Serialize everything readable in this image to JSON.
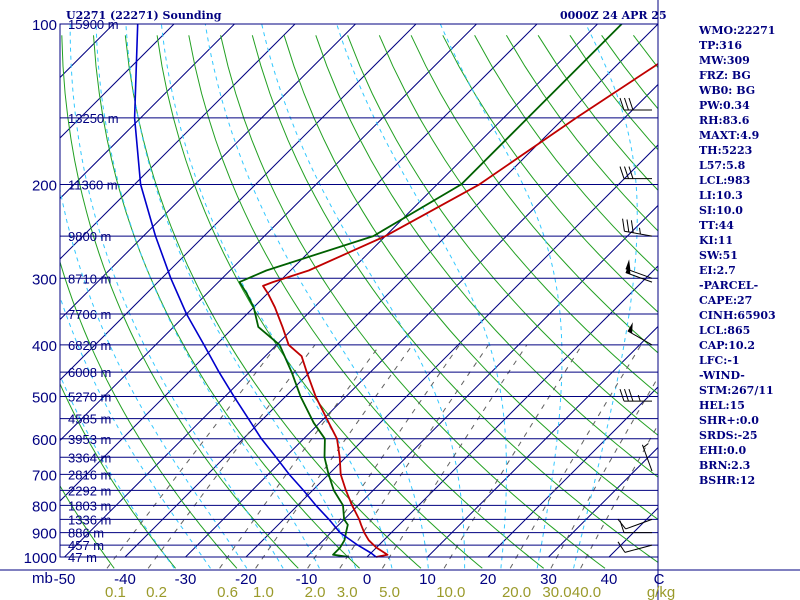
{
  "header": {
    "station": "U2271 (22271) Sounding",
    "valid_time": "0000Z 24 APR 25"
  },
  "indices": [
    "WMO:22271",
    "TP:316",
    "MW:309",
    "FRZ: BG",
    "WB0: BG",
    "PW:0.34",
    "RH:83.6",
    "MAXT:4.9",
    "TH:5223",
    "L57:5.8",
    "LCL:983",
    "LI:10.3",
    "SI:10.0",
    "TT:44",
    "KI:11",
    "SW:51",
    "EI:2.7",
    "-PARCEL-",
    "CAPE:27",
    "CINH:65903",
    "LCL:865",
    "CAP:10.2",
    "LFC:-1",
    "-WIND-",
    "STM:267/11",
    "HEL:15",
    "SHR+:0.0",
    "SRDS:-25",
    "EHI:0.0",
    "BRN:2.3",
    "BSHR:12"
  ],
  "colors": {
    "temperature": "#c00000",
    "dewpoint": "#006000",
    "parcel": "#0000cc",
    "isobar": "#000080",
    "isotherm": "#000080",
    "dry_adiabat": "#22a022",
    "moist_adiabat": "#33c8ff",
    "mixing_ratio": "#606060",
    "text": "#000080",
    "axis_text": "#9a9a2a"
  },
  "chart_data": {
    "type": "line",
    "subtype": "skew-T log-P sounding",
    "title": "U2271 (22271) Sounding",
    "ylabel": "mb",
    "xlabel": "C",
    "xlabel_secondary": "g/kg",
    "ylim": [
      1000,
      100
    ],
    "xlim": [
      -50,
      50
    ],
    "pressure_ticks": [
      100,
      200,
      300,
      400,
      500,
      600,
      700,
      800,
      900,
      1000
    ],
    "temperature_ticks": [
      -50,
      -40,
      -30,
      -20,
      -10,
      0,
      10,
      20,
      30,
      40
    ],
    "temperature_tick_labels": [
      "-50",
      "-40",
      "-30",
      "-20",
      "-10",
      "0",
      "10",
      "20",
      "30",
      "40",
      "C"
    ],
    "mixing_ratio_ticks": [
      0.1,
      0.2,
      0.6,
      1.0,
      2.0,
      3.0,
      5.0,
      10.0,
      20.0,
      30.0,
      40.0
    ],
    "mixing_ratio_tick_labels": [
      "0.1",
      "0.2",
      "0.6",
      "1.0",
      "2.0",
      "3.0",
      "5.0",
      "10.0",
      "20.0",
      "30.0",
      "40.0",
      "g/kg"
    ],
    "height_labels": [
      {
        "p": 100,
        "label": "15900 m"
      },
      {
        "p": 150,
        "label": "13250 m"
      },
      {
        "p": 200,
        "label": "11360 m"
      },
      {
        "p": 250,
        "label": "9800 m"
      },
      {
        "p": 300,
        "label": "8710 m"
      },
      {
        "p": 350,
        "label": "7706 m"
      },
      {
        "p": 400,
        "label": "6820 m"
      },
      {
        "p": 450,
        "label": "6008 m"
      },
      {
        "p": 500,
        "label": "5270 m"
      },
      {
        "p": 550,
        "label": "4585 m"
      },
      {
        "p": 600,
        "label": "3953 m"
      },
      {
        "p": 650,
        "label": "3364 m"
      },
      {
        "p": 700,
        "label": "2816 m"
      },
      {
        "p": 750,
        "label": "2292 m"
      },
      {
        "p": 800,
        "label": "1803 m"
      },
      {
        "p": 850,
        "label": "1336 m"
      },
      {
        "p": 900,
        "label": "886 m"
      },
      {
        "p": 950,
        "label": "457 m"
      },
      {
        "p": 1000,
        "label": "47 m"
      }
    ],
    "series": [
      {
        "id": "temperature",
        "points": [
          {
            "p": 1000,
            "t": 1.5
          },
          {
            "p": 990,
            "t": 3.0
          },
          {
            "p": 960,
            "t": 0.0
          },
          {
            "p": 930,
            "t": -2.5
          },
          {
            "p": 900,
            "t": -4.5
          },
          {
            "p": 870,
            "t": -6.3
          },
          {
            "p": 850,
            "t": -7.5
          },
          {
            "p": 800,
            "t": -11.0
          },
          {
            "p": 750,
            "t": -14.5
          },
          {
            "p": 700,
            "t": -18.0
          },
          {
            "p": 650,
            "t": -21.0
          },
          {
            "p": 600,
            "t": -24.5
          },
          {
            "p": 560,
            "t": -28.5
          },
          {
            "p": 500,
            "t": -35.0
          },
          {
            "p": 450,
            "t": -40.5
          },
          {
            "p": 420,
            "t": -44.0
          },
          {
            "p": 400,
            "t": -48.0
          },
          {
            "p": 370,
            "t": -52.0
          },
          {
            "p": 340,
            "t": -56.5
          },
          {
            "p": 320,
            "t": -60.0
          },
          {
            "p": 310,
            "t": -62.0
          },
          {
            "p": 305,
            "t": -61.0
          },
          {
            "p": 290,
            "t": -57.0
          },
          {
            "p": 250,
            "t": -50.0
          },
          {
            "p": 200,
            "t": -43.0
          },
          {
            "p": 150,
            "t": -38.0
          },
          {
            "p": 100,
            "t": -30.0
          }
        ]
      },
      {
        "id": "dewpoint",
        "points": [
          {
            "p": 1000,
            "t": -3.0
          },
          {
            "p": 990,
            "t": -6.0
          },
          {
            "p": 960,
            "t": -6.0
          },
          {
            "p": 930,
            "t": -6.5
          },
          {
            "p": 900,
            "t": -7.5
          },
          {
            "p": 870,
            "t": -8.5
          },
          {
            "p": 850,
            "t": -10.0
          },
          {
            "p": 800,
            "t": -12.5
          },
          {
            "p": 750,
            "t": -16.5
          },
          {
            "p": 700,
            "t": -20.0
          },
          {
            "p": 650,
            "t": -23.5
          },
          {
            "p": 600,
            "t": -26.5
          },
          {
            "p": 560,
            "t": -31.0
          },
          {
            "p": 500,
            "t": -37.5
          },
          {
            "p": 450,
            "t": -43.0
          },
          {
            "p": 400,
            "t": -49.5
          },
          {
            "p": 370,
            "t": -56.0
          },
          {
            "p": 340,
            "t": -60.0
          },
          {
            "p": 320,
            "t": -63.5
          },
          {
            "p": 305,
            "t": -66.5
          },
          {
            "p": 290,
            "t": -64.0
          },
          {
            "p": 250,
            "t": -52.0
          },
          {
            "p": 200,
            "t": -46.0
          },
          {
            "p": 150,
            "t": -46.0
          },
          {
            "p": 100,
            "t": -46.0
          }
        ]
      },
      {
        "id": "parcel",
        "points": [
          {
            "p": 1000,
            "t": 1.5
          },
          {
            "p": 983,
            "t": 0.0
          },
          {
            "p": 950,
            "t": -3.5
          },
          {
            "p": 900,
            "t": -8.5
          },
          {
            "p": 850,
            "t": -12.5
          },
          {
            "p": 800,
            "t": -17.0
          },
          {
            "p": 750,
            "t": -21.5
          },
          {
            "p": 700,
            "t": -26.5
          },
          {
            "p": 650,
            "t": -31.5
          },
          {
            "p": 600,
            "t": -37.0
          },
          {
            "p": 550,
            "t": -42.5
          },
          {
            "p": 500,
            "t": -48.5
          },
          {
            "p": 450,
            "t": -55.0
          },
          {
            "p": 400,
            "t": -62.0
          },
          {
            "p": 350,
            "t": -70.0
          },
          {
            "p": 300,
            "t": -78.5
          },
          {
            "p": 250,
            "t": -88.0
          },
          {
            "p": 200,
            "t": -99.0
          },
          {
            "p": 150,
            "t": -111.0
          },
          {
            "p": 100,
            "t": -126.0
          }
        ]
      }
    ],
    "wind_barbs": [
      {
        "p": 145,
        "dir": 270,
        "kt": 30
      },
      {
        "p": 195,
        "dir": 270,
        "kt": 30
      },
      {
        "p": 250,
        "dir": 280,
        "kt": 35
      },
      {
        "p": 300,
        "dir": 290,
        "kt": 50
      },
      {
        "p": 305,
        "dir": 290,
        "kt": 50
      },
      {
        "p": 400,
        "dir": 300,
        "kt": 50
      },
      {
        "p": 510,
        "dir": 270,
        "kt": 35
      },
      {
        "p": 690,
        "dir": 340,
        "kt": 5
      },
      {
        "p": 850,
        "dir": 250,
        "kt": 10
      },
      {
        "p": 900,
        "dir": 270,
        "kt": 10
      },
      {
        "p": 950,
        "dir": 255,
        "kt": 10
      }
    ]
  }
}
